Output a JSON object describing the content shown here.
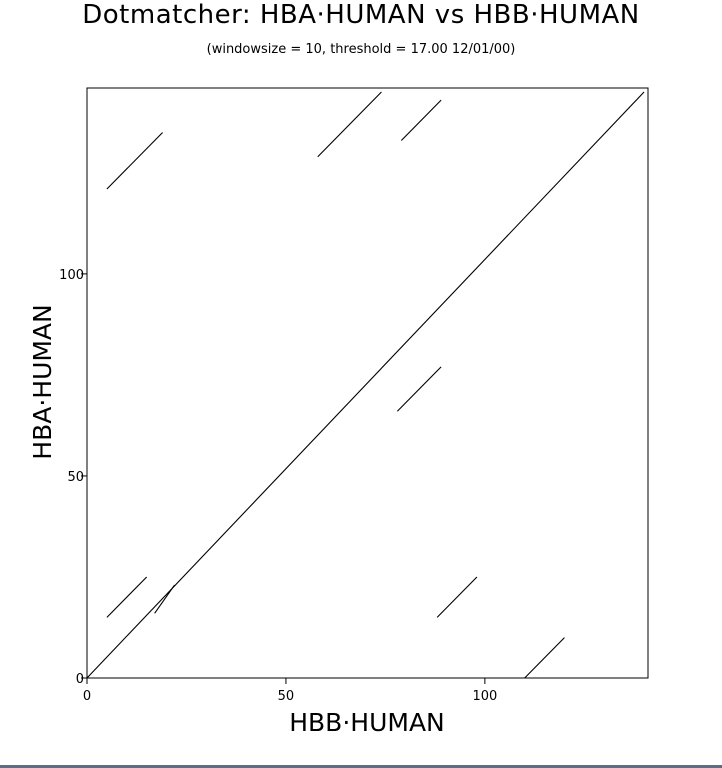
{
  "chart_data": {
    "type": "scatter",
    "title": "Dotmatcher: HBA·HUMAN vs HBB·HUMAN",
    "subtitle": "(windowsize = 10, threshold = 17.00  12/01/00)",
    "xlabel": "HBB·HUMAN",
    "ylabel": "HBA·HUMAN",
    "xlim": [
      0,
      141
    ],
    "ylim": [
      0,
      146
    ],
    "x_ticks": [
      0,
      50,
      100
    ],
    "y_ticks": [
      0,
      50,
      100
    ],
    "grid": false,
    "segments": [
      {
        "x1": 0,
        "y1": 0,
        "x2": 140,
        "y2": 145
      },
      {
        "x1": 5,
        "y1": 121,
        "x2": 19,
        "y2": 135
      },
      {
        "x1": 58,
        "y1": 129,
        "x2": 74,
        "y2": 145
      },
      {
        "x1": 79,
        "y1": 133,
        "x2": 89,
        "y2": 143
      },
      {
        "x1": 78,
        "y1": 66,
        "x2": 89,
        "y2": 77
      },
      {
        "x1": 5,
        "y1": 15,
        "x2": 15,
        "y2": 25
      },
      {
        "x1": 17,
        "y1": 16,
        "x2": 22,
        "y2": 23
      },
      {
        "x1": 88,
        "y1": 15,
        "x2": 98,
        "y2": 25
      },
      {
        "x1": 110,
        "y1": 0,
        "x2": 120,
        "y2": 10
      }
    ]
  }
}
